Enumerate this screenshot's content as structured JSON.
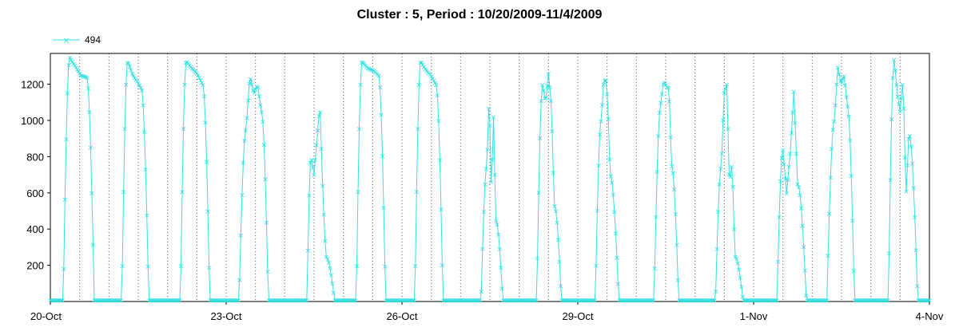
{
  "chart_data": {
    "type": "line",
    "title": "Cluster : 5, Period : 10/20/2009-11/4/2009",
    "xlabel": "",
    "ylabel": "",
    "ylim": [
      0,
      1370
    ],
    "y_ticks": [
      200,
      400,
      600,
      800,
      1000,
      1200
    ],
    "x_range_days": [
      0,
      15
    ],
    "x_ticks": [
      {
        "day": 0,
        "label": "20-Oct"
      },
      {
        "day": 3,
        "label": "23-Oct"
      },
      {
        "day": 6,
        "label": "26-Oct"
      },
      {
        "day": 9,
        "label": "29-Oct"
      },
      {
        "day": 12,
        "label": "1-Nov"
      },
      {
        "day": 15,
        "label": "4-Nov"
      }
    ],
    "grid": "vertical-dotted",
    "legend_position": "top-left",
    "series": [
      {
        "name": "494",
        "color": "#33e0e0",
        "days": [
          {
            "start": 0,
            "rise": [
              0.22,
              0.33
            ],
            "fall": [
              0.62,
              0.75
            ],
            "peaks": [
              1350,
              1300,
              1250,
              1240
            ]
          },
          {
            "start": 1,
            "rise": [
              1.22,
              1.32
            ],
            "fall": [
              1.55,
              1.68
            ],
            "peaks": [
              1330,
              1260,
              1220,
              1180
            ]
          },
          {
            "start": 2,
            "rise": [
              2.22,
              2.32
            ],
            "fall": [
              2.6,
              2.72
            ],
            "peaks": [
              1330,
              1290,
              1260,
              1200
            ]
          },
          {
            "start": 3,
            "rise": [
              3.22,
              3.34
            ],
            "fall": [
              3.6,
              3.72
            ],
            "peaks": [
              950,
              1250,
              1150,
              1200,
              1050
            ]
          },
          {
            "start": 4,
            "rise": [
              4.38,
              4.45
            ],
            "fall": [
              4.7,
              4.85
            ],
            "peaks": [
              800,
              700,
              900,
              1090,
              600,
              250
            ]
          },
          {
            "start": 5,
            "rise": [
              5.22,
              5.32
            ],
            "fall": [
              5.6,
              5.72
            ],
            "peaks": [
              1330,
              1290,
              1280,
              1250
            ]
          },
          {
            "start": 6,
            "rise": [
              6.22,
              6.32
            ],
            "fall": [
              6.58,
              6.7
            ],
            "peaks": [
              1330,
              1280,
              1250,
              1200
            ]
          },
          {
            "start": 7,
            "rise": [
              7.35,
              7.45
            ],
            "fall": [
              7.6,
              7.72
            ],
            "peaks": [
              750,
              1160,
              600,
              1020,
              450
            ]
          },
          {
            "start": 8,
            "rise": [
              8.3,
              8.4
            ],
            "fall": [
              8.6,
              8.72
            ],
            "peaks": [
              1200,
              1100,
              1260,
              1080,
              530
            ]
          },
          {
            "start": 9,
            "rise": [
              9.3,
              9.4
            ],
            "fall": [
              9.55,
              9.7
            ],
            "peaks": [
              1000,
              1200,
              1240,
              1100,
              700
            ]
          },
          {
            "start": 10,
            "rise": [
              10.3,
              10.42
            ],
            "fall": [
              10.6,
              10.72
            ],
            "peaks": [
              1100,
              1220,
              1190,
              1180,
              750
            ]
          },
          {
            "start": 11,
            "rise": [
              11.35,
              11.45
            ],
            "fall": [
              11.68,
              11.82
            ],
            "peaks": [
              750,
              1150,
              1200,
              650,
              770,
              250
            ]
          },
          {
            "start": 12,
            "rise": [
              12.4,
              12.5
            ],
            "fall": [
              12.75,
              12.9
            ],
            "peaks": [
              840,
              600,
              820,
              1160,
              650
            ]
          },
          {
            "start": 13,
            "rise": [
              13.25,
              13.38
            ],
            "fall": [
              13.6,
              13.72
            ],
            "peaks": [
              1000,
              1300,
              1200,
              1250,
              1080
            ]
          },
          {
            "start": 14,
            "rise": [
              14.3,
              14.4
            ],
            "fall": [
              14.65,
              14.8
            ],
            "peaks": [
              1340,
              1150,
              1050,
              1230,
              580,
              930
            ]
          }
        ]
      }
    ]
  }
}
